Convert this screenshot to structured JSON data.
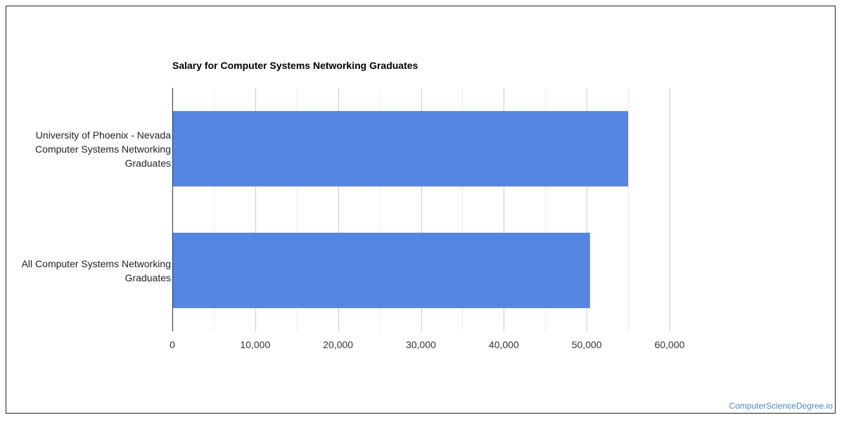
{
  "chart_data": {
    "type": "bar",
    "orientation": "horizontal",
    "title": "Salary for Computer Systems Networking Graduates",
    "categories": [
      "University of Phoenix - Nevada Computer Systems Networking Graduates",
      "All Computer Systems Networking Graduates"
    ],
    "category_lines": [
      [
        "University of Phoenix - Nevada",
        "Computer Systems Networking",
        "Graduates"
      ],
      [
        "All Computer Systems Networking",
        "Graduates"
      ]
    ],
    "values": [
      55000,
      50400
    ],
    "xlim": [
      0,
      60000
    ],
    "x_ticks": [
      0,
      10000,
      20000,
      30000,
      40000,
      50000,
      60000
    ],
    "x_tick_labels": [
      "0",
      "10,000",
      "20,000",
      "30,000",
      "40,000",
      "50,000",
      "60,000"
    ],
    "grid": true,
    "bar_color": "#5586e3",
    "xlabel": "",
    "ylabel": ""
  },
  "watermark": "ComputerScienceDegree.io"
}
